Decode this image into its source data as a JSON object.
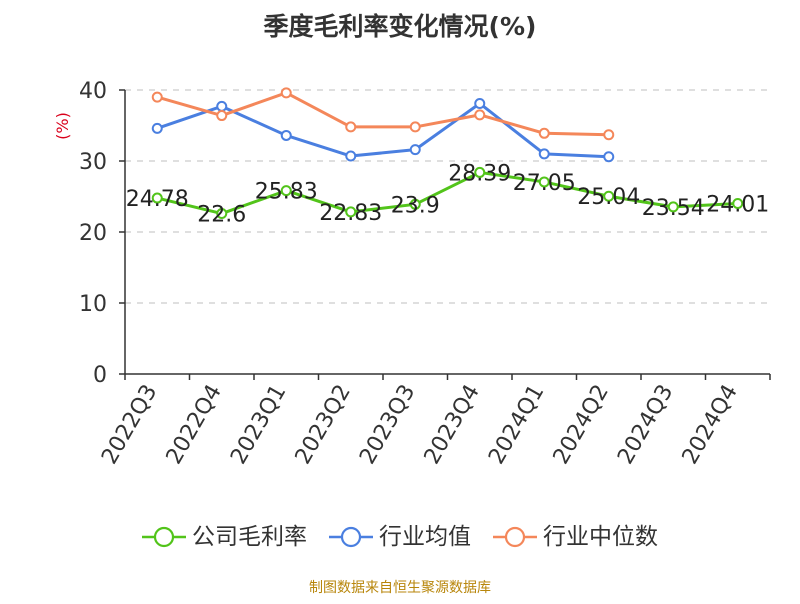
{
  "chart_data": {
    "type": "line",
    "title": "季度毛利率变化情况(%)",
    "ylabel": "(%)",
    "categories": [
      "2022Q3",
      "2022Q4",
      "2023Q1",
      "2023Q2",
      "2023Q3",
      "2023Q4",
      "2024Q1",
      "2024Q2",
      "2024Q3",
      "2024Q4"
    ],
    "ylim": [
      0,
      40
    ],
    "yticks": [
      0,
      10,
      20,
      30,
      40
    ],
    "grid": true,
    "legend_position": "bottom",
    "series": [
      {
        "name": "公司毛利率",
        "color": "#52c41a",
        "values": [
          24.78,
          22.6,
          25.83,
          22.83,
          23.9,
          28.39,
          27.05,
          25.04,
          23.54,
          24.01
        ],
        "show_data_labels": true
      },
      {
        "name": "行业均值",
        "color": "#4a7fe0",
        "values": [
          34.6,
          37.7,
          33.6,
          30.7,
          31.6,
          38.1,
          31.0,
          30.6,
          null,
          null
        ],
        "show_data_labels": false
      },
      {
        "name": "行业中位数",
        "color": "#f4875a",
        "values": [
          39.0,
          36.4,
          39.6,
          34.8,
          34.8,
          36.5,
          33.9,
          33.7,
          null,
          null
        ],
        "show_data_labels": false
      }
    ]
  },
  "footer": {
    "source": "制图数据来自恒生聚源数据库"
  }
}
